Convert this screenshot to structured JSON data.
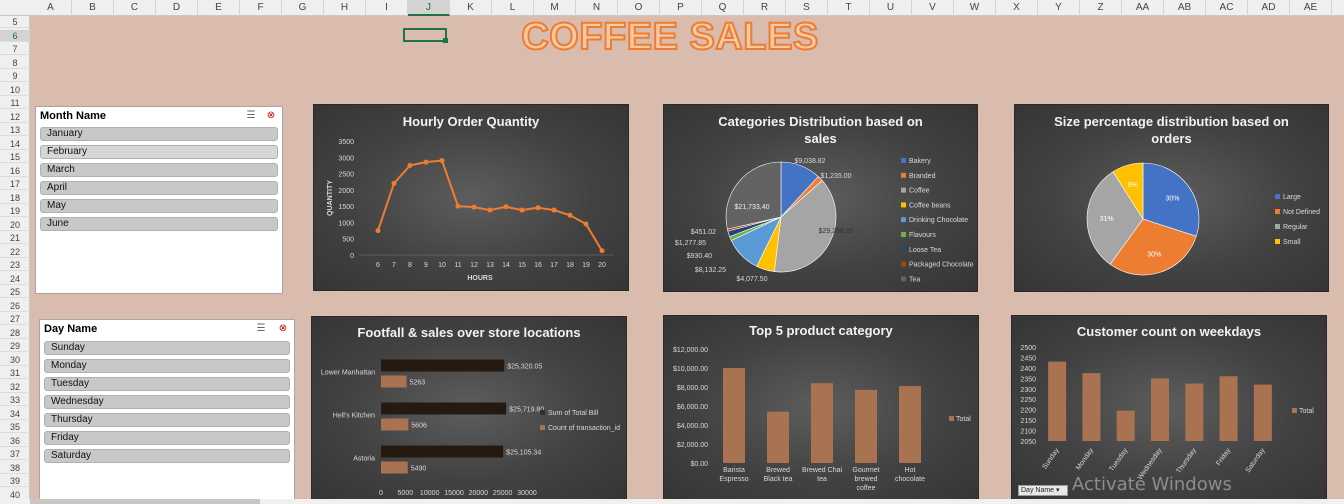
{
  "spreadsheet": {
    "columns": [
      "A",
      "B",
      "C",
      "D",
      "E",
      "F",
      "G",
      "H",
      "I",
      "J",
      "K",
      "L",
      "M",
      "N",
      "O",
      "P",
      "Q",
      "R",
      "S",
      "T",
      "U",
      "V",
      "W",
      "X",
      "Y",
      "Z",
      "AA",
      "AB",
      "AC",
      "AD",
      "AE"
    ],
    "selected_column": "J",
    "rows": [
      "5",
      "6",
      "7",
      "8",
      "9",
      "10",
      "11",
      "12",
      "13",
      "14",
      "15",
      "16",
      "17",
      "18",
      "19",
      "20",
      "21",
      "22",
      "23",
      "24",
      "25",
      "26",
      "27",
      "28",
      "29",
      "30",
      "31",
      "32",
      "33",
      "34",
      "35",
      "36",
      "37",
      "38",
      "39",
      "40"
    ],
    "selected_row": "6"
  },
  "dashboard_title": "COFFEE SALES",
  "slicers": {
    "month": {
      "title": "Month Name",
      "items": [
        "January",
        "February",
        "March",
        "April",
        "May",
        "June"
      ],
      "highlighted": "February"
    },
    "day": {
      "title": "Day Name",
      "items": [
        "Sunday",
        "Monday",
        "Tuesday",
        "Wednesday",
        "Thursday",
        "Friday",
        "Saturday"
      ]
    }
  },
  "icons": {
    "multiselect": "multi-select-icon",
    "clear": "clear-filter-icon"
  },
  "colors": {
    "background": "#d9bcae",
    "accent_orange": "#ed7d31",
    "bar_brown": "#a97251",
    "blue": "#4472c4",
    "gray": "#a5a5a5",
    "yellow": "#ffc000"
  },
  "watermark": "Activate Windows",
  "pivot_field_button": "Day Name",
  "chart_data": [
    {
      "type": "line",
      "title": "Hourly Order Quantity",
      "xlabel": "HOURS",
      "ylabel": "QUANTITY",
      "x": [
        6,
        7,
        8,
        9,
        10,
        11,
        12,
        13,
        14,
        15,
        16,
        17,
        18,
        19,
        20
      ],
      "y_ticks": [
        0,
        500,
        1000,
        1500,
        2000,
        2500,
        3000,
        3500
      ],
      "ylim": [
        0,
        3500
      ],
      "series": [
        {
          "values": [
            750,
            2200,
            2750,
            2850,
            2900,
            1500,
            1470,
            1380,
            1480,
            1380,
            1450,
            1380,
            1220,
            950,
            130
          ]
        }
      ]
    },
    {
      "type": "pie",
      "title": "Categories Distribution based on sales",
      "legend_position": "right",
      "labels": [
        "Bakery",
        "Branded",
        "Coffee",
        "Coffee beans",
        "Drinking Chocolate",
        "Flavours",
        "Loose Tea",
        "Packaged Chocolate",
        "Tea"
      ],
      "values": [
        9038.82,
        1235.0,
        29268.95,
        4077.5,
        8132.25,
        930.4,
        1277.85,
        451.02,
        21733.4
      ],
      "data_labels": [
        "$9,038.82",
        "$1,235.00",
        "$29,268.95",
        "$4,077.50",
        "$8,132.25",
        "$930.40",
        "$1,277.85",
        "$451.02",
        "$21,733.40"
      ],
      "colors": [
        "#4472c4",
        "#ed7d31",
        "#a5a5a5",
        "#ffc000",
        "#5b9bd5",
        "#70ad47",
        "#264478",
        "#9e480e",
        "#636363"
      ]
    },
    {
      "type": "pie",
      "title": "Size percentage distribution based on orders",
      "legend_position": "right",
      "labels": [
        "Large",
        "Not Defined",
        "Regular",
        "Small"
      ],
      "values": [
        30,
        30,
        31,
        9
      ],
      "data_labels": [
        "30%",
        "30%",
        "31%",
        "9%"
      ],
      "colors": [
        "#4472c4",
        "#ed7d31",
        "#a5a5a5",
        "#ffc000"
      ]
    },
    {
      "type": "bar",
      "orientation": "horizontal",
      "title": "Footfall & sales over store locations",
      "legend_position": "right",
      "categories": [
        "Lower Manhattan",
        "Hell's Kitchen",
        "Astoria"
      ],
      "x_ticks": [
        0,
        5000,
        10000,
        15000,
        20000,
        25000,
        30000
      ],
      "xlim": [
        0,
        30000
      ],
      "series": [
        {
          "name": "Sum of Total Bill",
          "values": [
            25320.05,
            25719.8,
            25105.34
          ],
          "labels": [
            "$25,320.05",
            "$25,719.80",
            "$25,105.34"
          ],
          "color": "#241a12"
        },
        {
          "name": "Count of transaction_id",
          "values": [
            5263,
            5606,
            5490
          ],
          "labels": [
            "5263",
            "5606",
            "5490"
          ],
          "color": "#a97251"
        }
      ]
    },
    {
      "type": "bar",
      "title": "Top 5 product category",
      "legend_position": "right",
      "categories": [
        "Barista Espresso",
        "Brewed Black tea",
        "Brewed Chai tea",
        "Gourmet brewed coffee",
        "Hot chocolate"
      ],
      "y_ticks": [
        "$0.00",
        "$2,000.00",
        "$4,000.00",
        "$6,000.00",
        "$8,000.00",
        "$10,000.00",
        "$12,000.00"
      ],
      "ylim": [
        0,
        12000
      ],
      "series": [
        {
          "name": "Total",
          "values": [
            10000,
            5400,
            8400,
            7700,
            8100
          ]
        }
      ]
    },
    {
      "type": "bar",
      "title": "Customer count on weekdays",
      "legend_position": "right",
      "categories": [
        "Sunday",
        "Monday",
        "Tuesday",
        "Wednesday",
        "Thursday",
        "Friday",
        "Saturday"
      ],
      "y_ticks": [
        2050,
        2100,
        2150,
        2200,
        2250,
        2300,
        2350,
        2400,
        2450,
        2500
      ],
      "ylim": [
        2050,
        2500
      ],
      "series": [
        {
          "name": "Total",
          "values": [
            2430,
            2375,
            2195,
            2350,
            2325,
            2360,
            2320
          ]
        }
      ]
    }
  ]
}
